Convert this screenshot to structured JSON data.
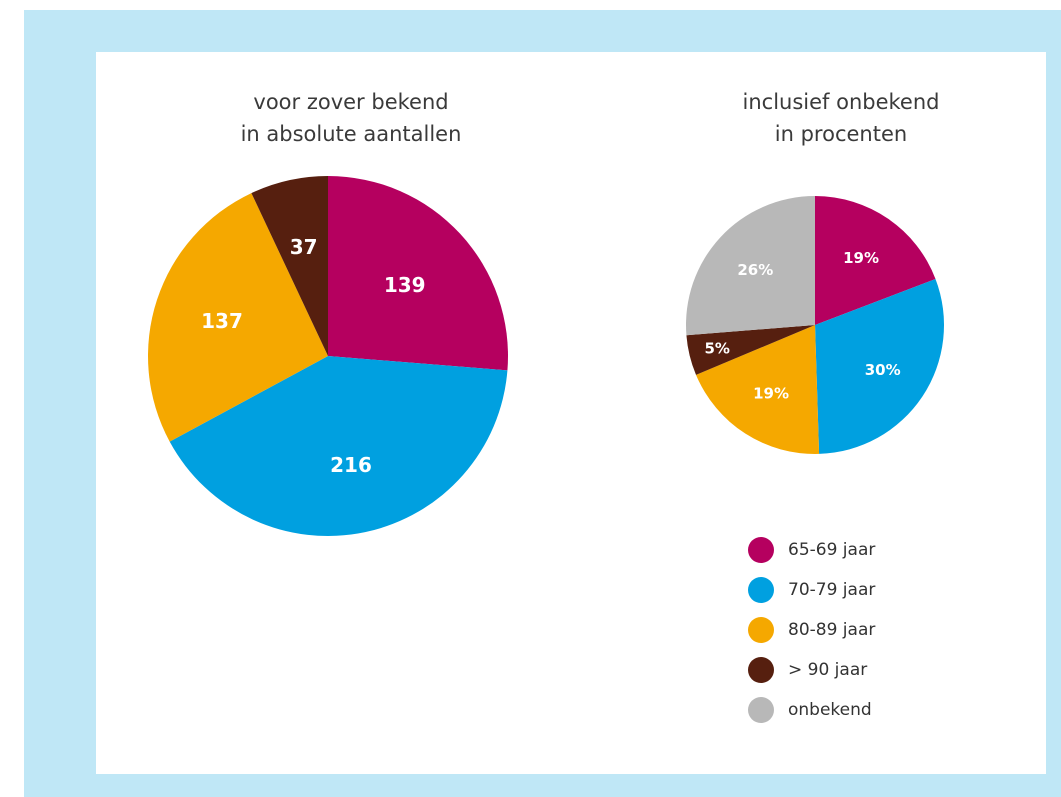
{
  "colors": {
    "frame": "#bfe7f6",
    "c65_69": "#b5005f",
    "c70_79": "#00a0e0",
    "c80_89": "#f5a800",
    "c90": "#561f0f",
    "unknown": "#b8b8b8"
  },
  "chart_data": [
    {
      "type": "pie",
      "title": "voor zover bekend\nin absolute aantallen",
      "categories": [
        "65-69 jaar",
        "70-79 jaar",
        "80-89 jaar",
        "> 90 jaar"
      ],
      "values": [
        139,
        216,
        137,
        37
      ],
      "labels": [
        "139",
        "216",
        "137",
        "37"
      ],
      "colors": [
        "#b5005f",
        "#00a0e0",
        "#f5a800",
        "#561f0f"
      ]
    },
    {
      "type": "pie",
      "title": "inclusief onbekend\nin procenten",
      "categories": [
        "65-69 jaar",
        "70-79 jaar",
        "80-89 jaar",
        "> 90 jaar",
        "onbekend"
      ],
      "values": [
        19,
        30,
        19,
        5,
        26
      ],
      "labels": [
        "19%",
        "30%",
        "19%",
        "5%",
        "26%"
      ],
      "colors": [
        "#b5005f",
        "#00a0e0",
        "#f5a800",
        "#561f0f",
        "#b8b8b8"
      ]
    }
  ],
  "legend": [
    {
      "label": "65-69 jaar",
      "color": "#b5005f"
    },
    {
      "label": "70-79 jaar",
      "color": "#00a0e0"
    },
    {
      "label": "80-89 jaar",
      "color": "#f5a800"
    },
    {
      "label": "> 90 jaar",
      "color": "#561f0f"
    },
    {
      "label": "onbekend",
      "color": "#b8b8b8"
    }
  ]
}
